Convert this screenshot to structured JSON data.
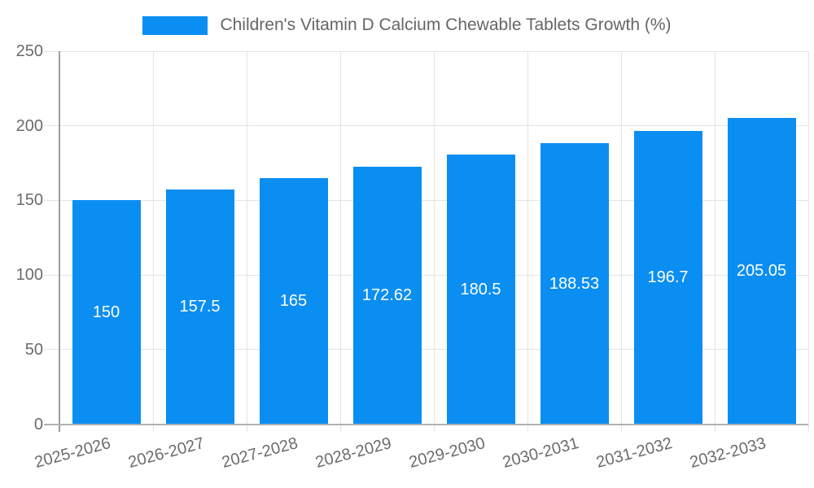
{
  "chart_data": {
    "type": "bar",
    "title": "Children's Vitamin D Calcium Chewable Tablets Growth (%)",
    "series": [
      {
        "name": "Children's Vitamin D Calcium Chewable Tablets Growth (%)",
        "values": [
          150,
          157.5,
          165,
          172.62,
          180.5,
          188.53,
          196.7,
          205.05
        ]
      }
    ],
    "categories": [
      "2025-2026",
      "2026-2027",
      "2027-2028",
      "2028-2029",
      "2029-2030",
      "2030-2031",
      "2031-2032",
      "2032-2033"
    ],
    "xlabel": "",
    "ylabel": "",
    "ylim": [
      0,
      250
    ],
    "yticks": [
      0,
      50,
      100,
      150,
      200,
      250
    ],
    "grid": true,
    "legend_position": "top-center",
    "value_labels_position": "inside-center",
    "x_tick_rotation_deg": -15
  },
  "colors": {
    "bar_fill": "#0b8ef2",
    "value_label_text": "#ffffff",
    "grid_line": "#e4e4e4",
    "axis_line": "#9e9e9e",
    "baseline": "#b0b0b0",
    "tick_label_text": "#6b6b6b",
    "legend_text": "#666666",
    "background": "#ffffff"
  }
}
